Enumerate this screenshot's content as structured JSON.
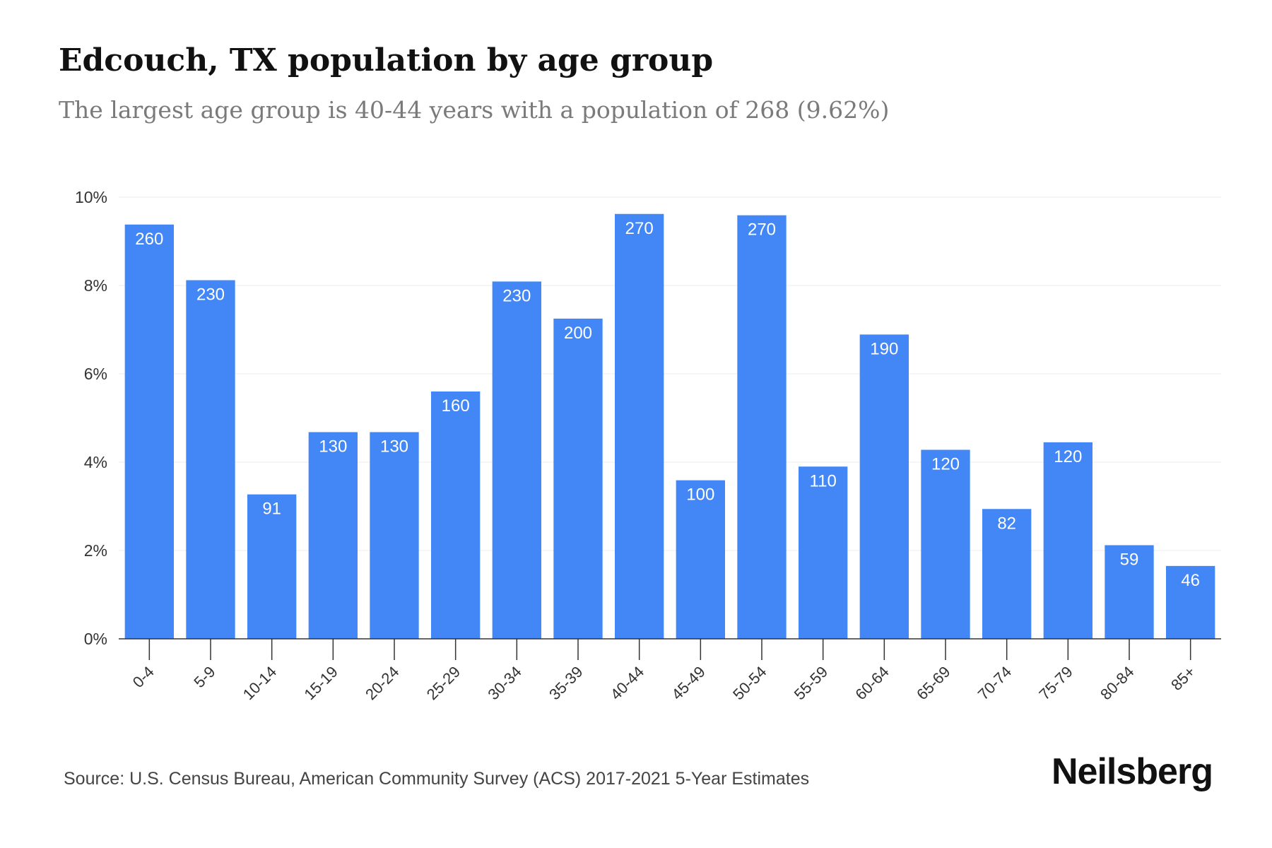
{
  "chart_data": {
    "type": "bar",
    "title": "Edcouch, TX population by age group",
    "subtitle": "The largest age group is 40-44 years with a population of 268 (9.62%)",
    "categories": [
      "0-4",
      "5-9",
      "10-14",
      "15-19",
      "20-24",
      "25-29",
      "30-34",
      "35-39",
      "40-44",
      "45-49",
      "50-54",
      "55-59",
      "60-64",
      "65-69",
      "70-74",
      "75-79",
      "80-84",
      "85+"
    ],
    "values": [
      9.38,
      8.12,
      3.27,
      4.68,
      4.68,
      5.6,
      8.09,
      7.25,
      9.62,
      3.59,
      9.59,
      3.9,
      6.89,
      4.28,
      2.94,
      4.45,
      2.12,
      1.65
    ],
    "data_labels": [
      "260",
      "230",
      "91",
      "130",
      "130",
      "160",
      "230",
      "200",
      "270",
      "100",
      "270",
      "110",
      "190",
      "120",
      "82",
      "120",
      "59",
      "46"
    ],
    "yticks": [
      "0%",
      "2%",
      "4%",
      "6%",
      "8%",
      "10%"
    ],
    "ytick_values": [
      0,
      2,
      4,
      6,
      8,
      10
    ],
    "ylim": [
      0,
      10
    ],
    "grid": true,
    "bar_color": "#4287f5",
    "xlabel": "",
    "ylabel": ""
  },
  "footer": {
    "source": "Source: U.S. Census Bureau, American Community Survey (ACS) 2017-2021 5-Year Estimates",
    "brand": "Neilsberg"
  }
}
